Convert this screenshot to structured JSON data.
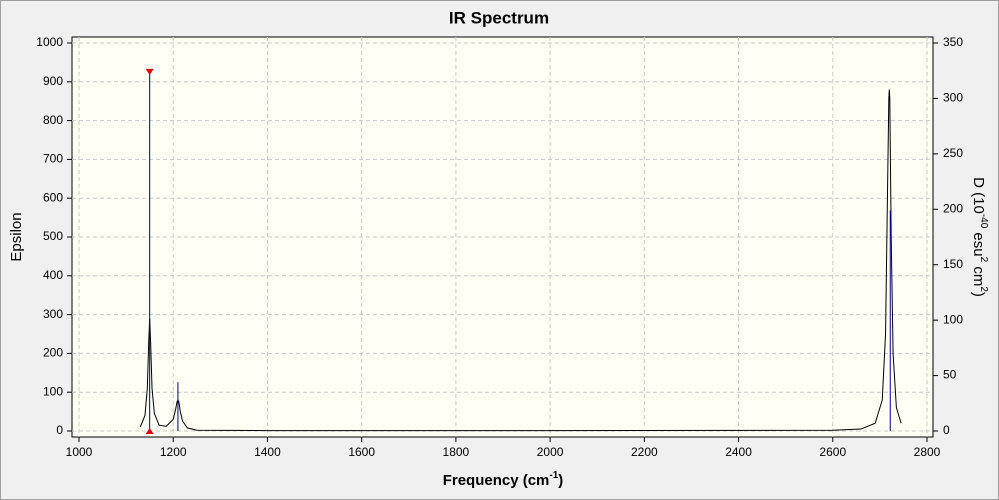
{
  "chart_data": {
    "type": "spectrum",
    "title": "IR Spectrum",
    "xlabel_parts": [
      "Frequency (cm",
      "-1",
      ")"
    ],
    "ylabel": "Epsilon",
    "y2label_parts": [
      "D (10",
      "-40",
      " esu",
      "2",
      " cm",
      "2",
      ")"
    ],
    "xlim": [
      1000,
      2800
    ],
    "xticks": [
      1000,
      1200,
      1400,
      1600,
      1800,
      2000,
      2200,
      2400,
      2600,
      2800
    ],
    "ylim": [
      0,
      1000
    ],
    "yticks": [
      0,
      100,
      200,
      300,
      400,
      500,
      600,
      700,
      800,
      900,
      1000
    ],
    "y2lim": [
      0,
      350
    ],
    "y2ticks": [
      0,
      50,
      100,
      150,
      200,
      250,
      300,
      350
    ],
    "grid": true,
    "series": [
      {
        "kind": "line",
        "color": "#000000",
        "x": [
          1130,
          1140,
          1145,
          1148,
          1150,
          1152,
          1155,
          1160,
          1170,
          1185,
          1200,
          1205,
          1208,
          1210,
          1212,
          1215,
          1220,
          1230,
          1250,
          1400,
          2000,
          2600,
          2660,
          2690,
          2705,
          2712,
          2716,
          2719,
          2720,
          2721,
          2724,
          2728,
          2735,
          2745
        ],
        "values": [
          10,
          40,
          110,
          230,
          290,
          230,
          110,
          45,
          15,
          12,
          30,
          55,
          75,
          80,
          75,
          50,
          25,
          8,
          2,
          1,
          1,
          2,
          5,
          20,
          80,
          250,
          600,
          860,
          880,
          860,
          500,
          200,
          60,
          20
        ]
      },
      {
        "kind": "stick",
        "color": "#00008b",
        "axis": "y2",
        "x": [
          1150,
          1210,
          2722
        ],
        "values": [
          324,
          44,
          199
        ]
      }
    ]
  }
}
